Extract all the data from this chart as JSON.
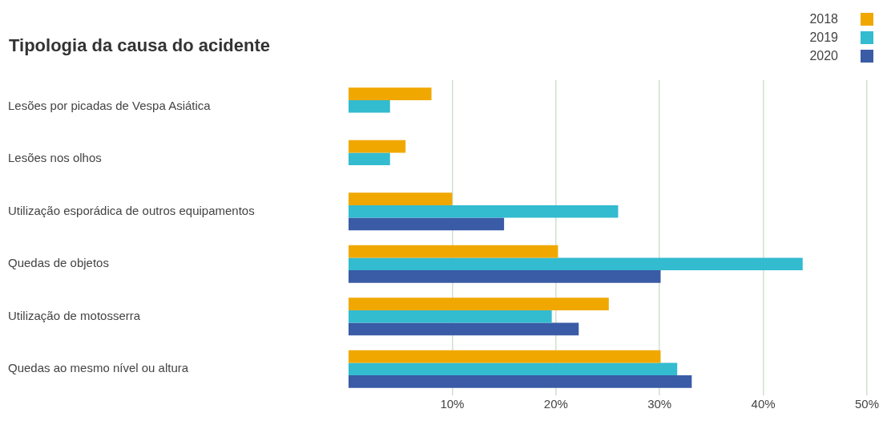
{
  "chart_data": {
    "type": "bar",
    "orientation": "horizontal",
    "title": "Tipologia da causa do acidente",
    "categories": [
      "Lesões por picadas de Vespa Asiática",
      "Lesões nos olhos",
      "Utilização esporádica de outros equipamentos",
      "Quedas de objetos",
      "Utilização de motosserra",
      "Quedas ao mesmo nível ou altura"
    ],
    "series": [
      {
        "name": "2018",
        "color": "#f0a800",
        "values": [
          8,
          5.5,
          10,
          20.2,
          25.1,
          30.1
        ]
      },
      {
        "name": "2019",
        "color": "#33bbd0",
        "values": [
          4,
          4,
          26,
          43.8,
          19.6,
          31.7
        ]
      },
      {
        "name": "2020",
        "color": "#3a5ba6",
        "values": [
          null,
          null,
          15,
          30.1,
          22.2,
          33.1
        ]
      }
    ],
    "xlim": [
      0,
      50
    ],
    "xticks": [
      {
        "value": 10,
        "label": "10%"
      },
      {
        "value": 20,
        "label": "20%"
      },
      {
        "value": 30,
        "label": "30%"
      },
      {
        "value": 40,
        "label": "40%"
      },
      {
        "value": 50,
        "label": "50%"
      }
    ],
    "grid": "x",
    "legend": "top right"
  }
}
